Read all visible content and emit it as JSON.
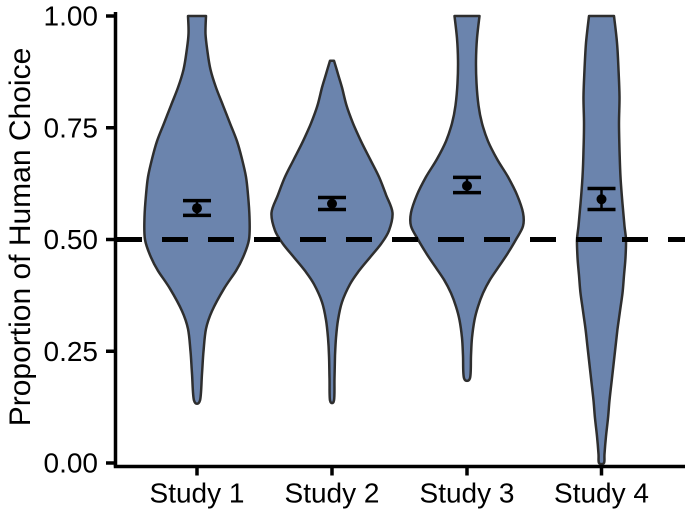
{
  "figure": {
    "background": "#ffffff"
  },
  "chart_data": {
    "type": "violin",
    "title": "",
    "xlabel": "",
    "ylabel": "Proportion of Human Choice",
    "categories": [
      "Study 1",
      "Study 2",
      "Study 3",
      "Study 4"
    ],
    "ylim": [
      0,
      1
    ],
    "grid": false,
    "legend": false,
    "y_ticks": [
      {
        "value": 1.0,
        "label": "1.00"
      },
      {
        "value": 0.75,
        "label": "0.75"
      },
      {
        "value": 0.5,
        "label": "0.50"
      },
      {
        "value": 0.25,
        "label": "0.25"
      },
      {
        "value": 0.0,
        "label": "0.00"
      }
    ],
    "reference_line": {
      "value": 0.5,
      "style": "dashed"
    },
    "colors": {
      "violin_fill": "#6b84ad",
      "violin_stroke": "#2e2e2e",
      "marker": "#000000",
      "axis": "#000000",
      "reference": "#000000",
      "text": "#000000"
    },
    "series": [
      {
        "name": "Study 1",
        "mean": 0.57,
        "ci": [
          0.554,
          0.587
        ],
        "range": [
          0.14,
          1.0
        ],
        "profile": [
          [
            1.0,
            9
          ],
          [
            0.96,
            8.5
          ],
          [
            0.92,
            10.5
          ],
          [
            0.88,
            13.5
          ],
          [
            0.84,
            19
          ],
          [
            0.8,
            26
          ],
          [
            0.76,
            33
          ],
          [
            0.72,
            40
          ],
          [
            0.68,
            45
          ],
          [
            0.64,
            49
          ],
          [
            0.6,
            51
          ],
          [
            0.55,
            52.5
          ],
          [
            0.5,
            52
          ],
          [
            0.46,
            46
          ],
          [
            0.43,
            39
          ],
          [
            0.39,
            27
          ],
          [
            0.34,
            15
          ],
          [
            0.3,
            9
          ],
          [
            0.25,
            6.5
          ],
          [
            0.2,
            5
          ],
          [
            0.14,
            3
          ]
        ]
      },
      {
        "name": "Study 2",
        "mean": 0.58,
        "ci": [
          0.567,
          0.594
        ],
        "range": [
          0.14,
          0.9
        ],
        "profile": [
          [
            0.9,
            2
          ],
          [
            0.87,
            6
          ],
          [
            0.84,
            10
          ],
          [
            0.8,
            14.5
          ],
          [
            0.76,
            21
          ],
          [
            0.72,
            29
          ],
          [
            0.68,
            38
          ],
          [
            0.64,
            47
          ],
          [
            0.6,
            54
          ],
          [
            0.56,
            60.5
          ],
          [
            0.52,
            57
          ],
          [
            0.49,
            49
          ],
          [
            0.46,
            38
          ],
          [
            0.43,
            27
          ],
          [
            0.4,
            18
          ],
          [
            0.36,
            10
          ],
          [
            0.32,
            6
          ],
          [
            0.28,
            4
          ],
          [
            0.24,
            3
          ],
          [
            0.19,
            2.5
          ],
          [
            0.14,
            2
          ]
        ]
      },
      {
        "name": "Study 3",
        "mean": 0.62,
        "ci": [
          0.605,
          0.639
        ],
        "range": [
          0.19,
          1.0
        ],
        "profile": [
          [
            1.0,
            12.5
          ],
          [
            0.95,
            10
          ],
          [
            0.9,
            9
          ],
          [
            0.85,
            9.5
          ],
          [
            0.8,
            11.5
          ],
          [
            0.76,
            15
          ],
          [
            0.72,
            21
          ],
          [
            0.68,
            30
          ],
          [
            0.64,
            41
          ],
          [
            0.6,
            50
          ],
          [
            0.56,
            56
          ],
          [
            0.53,
            56
          ],
          [
            0.5,
            49
          ],
          [
            0.47,
            41
          ],
          [
            0.44,
            32
          ],
          [
            0.41,
            23
          ],
          [
            0.38,
            16
          ],
          [
            0.35,
            11
          ],
          [
            0.32,
            7.5
          ],
          [
            0.28,
            5
          ],
          [
            0.24,
            4
          ],
          [
            0.19,
            3
          ]
        ]
      },
      {
        "name": "Study 4",
        "mean": 0.59,
        "ci": [
          0.567,
          0.614
        ],
        "range": [
          0.0,
          1.0
        ],
        "profile": [
          [
            1.0,
            12.5
          ],
          [
            0.94,
            15.5
          ],
          [
            0.88,
            17
          ],
          [
            0.82,
            18
          ],
          [
            0.76,
            17.5
          ],
          [
            0.7,
            18
          ],
          [
            0.64,
            19
          ],
          [
            0.58,
            21
          ],
          [
            0.53,
            23
          ],
          [
            0.5,
            24.5
          ],
          [
            0.46,
            24
          ],
          [
            0.42,
            22.5
          ],
          [
            0.38,
            21
          ],
          [
            0.34,
            18.5
          ],
          [
            0.3,
            16
          ],
          [
            0.26,
            14
          ],
          [
            0.22,
            12
          ],
          [
            0.18,
            10
          ],
          [
            0.14,
            8
          ],
          [
            0.1,
            6.5
          ],
          [
            0.06,
            4.5
          ],
          [
            0.02,
            3
          ],
          [
            0.0,
            2.5
          ]
        ]
      }
    ]
  }
}
